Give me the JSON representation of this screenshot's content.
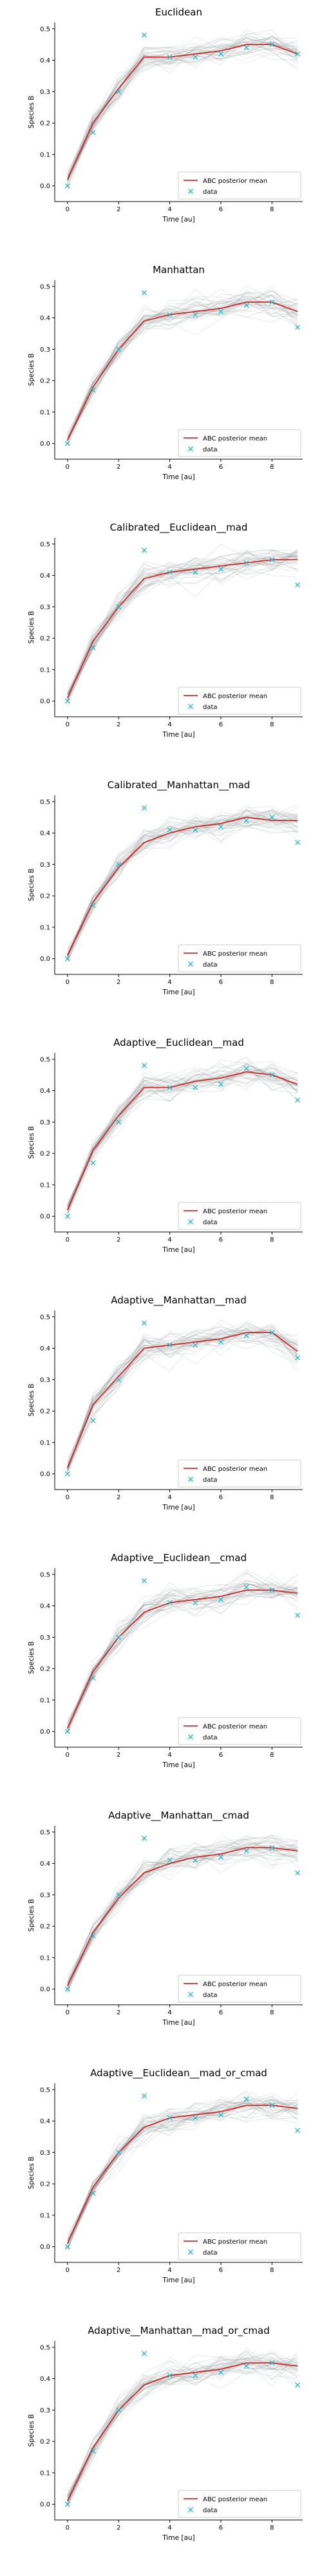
{
  "figure": {
    "x_label": "Time [au]",
    "y_label": "Species B",
    "legend": {
      "mean_label": "ABC posterior mean",
      "data_label": "data",
      "placement": "lower-right"
    },
    "colors": {
      "mean_line": "#d62728",
      "data_marker": "#17becf",
      "posterior_samples": "#7f8c8d"
    }
  },
  "chart_data": [
    {
      "type": "line",
      "title": "Euclidean",
      "xlabel": "Time [au]",
      "ylabel": "Species B",
      "xlim": [
        -0.5,
        9.2
      ],
      "ylim": [
        -0.05,
        0.52
      ],
      "xticks": [
        0,
        2,
        4,
        6,
        8
      ],
      "yticks": [
        0.0,
        0.1,
        0.2,
        0.3,
        0.4,
        0.5
      ],
      "legend_loc": "lower-right",
      "series": [
        {
          "name": "ABC posterior mean",
          "x": [
            0,
            1,
            2,
            3,
            4,
            5,
            6,
            7,
            8,
            9
          ],
          "y": [
            0.02,
            0.2,
            0.31,
            0.41,
            0.41,
            0.42,
            0.43,
            0.45,
            0.45,
            0.42
          ]
        },
        {
          "name": "data",
          "x": [
            0,
            1,
            2,
            3,
            4,
            5,
            6,
            7,
            8,
            9
          ],
          "y": [
            0.0,
            0.17,
            0.3,
            0.48,
            0.41,
            0.41,
            0.42,
            0.44,
            0.45,
            0.42
          ]
        }
      ]
    },
    {
      "type": "line",
      "title": "Manhattan",
      "xlabel": "Time [au]",
      "ylabel": "Species B",
      "xlim": [
        -0.5,
        9.2
      ],
      "ylim": [
        -0.05,
        0.52
      ],
      "xticks": [
        0,
        2,
        4,
        6,
        8
      ],
      "yticks": [
        0.0,
        0.1,
        0.2,
        0.3,
        0.4,
        0.5
      ],
      "legend_loc": "lower-right",
      "series": [
        {
          "name": "ABC posterior mean",
          "x": [
            0,
            1,
            2,
            3,
            4,
            5,
            6,
            7,
            8,
            9
          ],
          "y": [
            0.01,
            0.18,
            0.3,
            0.39,
            0.41,
            0.42,
            0.43,
            0.45,
            0.45,
            0.42
          ]
        },
        {
          "name": "data",
          "x": [
            0,
            1,
            2,
            3,
            4,
            5,
            6,
            7,
            8,
            9
          ],
          "y": [
            0.0,
            0.17,
            0.3,
            0.48,
            0.41,
            0.41,
            0.42,
            0.44,
            0.45,
            0.37
          ]
        }
      ]
    },
    {
      "type": "line",
      "title": "Calibrated__Euclidean__mad",
      "xlabel": "Time [au]",
      "ylabel": "Species B",
      "xlim": [
        -0.5,
        9.2
      ],
      "ylim": [
        -0.05,
        0.52
      ],
      "xticks": [
        0,
        2,
        4,
        6,
        8
      ],
      "yticks": [
        0.0,
        0.1,
        0.2,
        0.3,
        0.4,
        0.5
      ],
      "legend_loc": "lower-right",
      "series": [
        {
          "name": "ABC posterior mean",
          "x": [
            0,
            1,
            2,
            3,
            4,
            5,
            6,
            7,
            8,
            9
          ],
          "y": [
            0.01,
            0.19,
            0.3,
            0.39,
            0.41,
            0.42,
            0.43,
            0.44,
            0.45,
            0.45
          ]
        },
        {
          "name": "data",
          "x": [
            0,
            1,
            2,
            3,
            4,
            5,
            6,
            7,
            8,
            9
          ],
          "y": [
            0.0,
            0.17,
            0.3,
            0.48,
            0.41,
            0.41,
            0.42,
            0.44,
            0.45,
            0.37
          ]
        }
      ]
    },
    {
      "type": "line",
      "title": "Calibrated__Manhattan__mad",
      "xlabel": "Time [au]",
      "ylabel": "Species B",
      "xlim": [
        -0.5,
        9.2
      ],
      "ylim": [
        -0.05,
        0.52
      ],
      "xticks": [
        0,
        2,
        4,
        6,
        8
      ],
      "yticks": [
        0.0,
        0.1,
        0.2,
        0.3,
        0.4,
        0.5
      ],
      "legend_loc": "lower-right",
      "series": [
        {
          "name": "ABC posterior mean",
          "x": [
            0,
            1,
            2,
            3,
            4,
            5,
            6,
            7,
            8,
            9
          ],
          "y": [
            0.01,
            0.18,
            0.29,
            0.37,
            0.4,
            0.42,
            0.43,
            0.45,
            0.44,
            0.44
          ]
        },
        {
          "name": "data",
          "x": [
            0,
            1,
            2,
            3,
            4,
            5,
            6,
            7,
            8,
            9
          ],
          "y": [
            0.0,
            0.17,
            0.3,
            0.48,
            0.41,
            0.41,
            0.42,
            0.44,
            0.45,
            0.37
          ]
        }
      ]
    },
    {
      "type": "line",
      "title": "Adaptive__Euclidean__mad",
      "xlabel": "Time [au]",
      "ylabel": "Species B",
      "xlim": [
        -0.5,
        9.2
      ],
      "ylim": [
        -0.05,
        0.52
      ],
      "xticks": [
        0,
        2,
        4,
        6,
        8
      ],
      "yticks": [
        0.0,
        0.1,
        0.2,
        0.3,
        0.4,
        0.5
      ],
      "legend_loc": "lower-right",
      "series": [
        {
          "name": "ABC posterior mean",
          "x": [
            0,
            1,
            2,
            3,
            4,
            5,
            6,
            7,
            8,
            9
          ],
          "y": [
            0.02,
            0.21,
            0.32,
            0.41,
            0.41,
            0.43,
            0.44,
            0.46,
            0.45,
            0.42
          ]
        },
        {
          "name": "data",
          "x": [
            0,
            1,
            2,
            3,
            4,
            5,
            6,
            7,
            8,
            9
          ],
          "y": [
            0.0,
            0.17,
            0.3,
            0.48,
            0.41,
            0.41,
            0.42,
            0.47,
            0.45,
            0.37
          ]
        }
      ]
    },
    {
      "type": "line",
      "title": "Adaptive__Manhattan__mad",
      "xlabel": "Time [au]",
      "ylabel": "Species B",
      "xlim": [
        -0.5,
        9.2
      ],
      "ylim": [
        -0.05,
        0.52
      ],
      "xticks": [
        0,
        2,
        4,
        6,
        8
      ],
      "yticks": [
        0.0,
        0.1,
        0.2,
        0.3,
        0.4,
        0.5
      ],
      "legend_loc": "lower-right",
      "series": [
        {
          "name": "ABC posterior mean",
          "x": [
            0,
            1,
            2,
            3,
            4,
            5,
            6,
            7,
            8,
            9
          ],
          "y": [
            0.02,
            0.22,
            0.31,
            0.4,
            0.41,
            0.42,
            0.43,
            0.45,
            0.45,
            0.39
          ]
        },
        {
          "name": "data",
          "x": [
            0,
            1,
            2,
            3,
            4,
            5,
            6,
            7,
            8,
            9
          ],
          "y": [
            0.0,
            0.17,
            0.3,
            0.48,
            0.41,
            0.41,
            0.42,
            0.44,
            0.45,
            0.37
          ]
        }
      ]
    },
    {
      "type": "line",
      "title": "Adaptive__Euclidean__cmad",
      "xlabel": "Time [au]",
      "ylabel": "Species B",
      "xlim": [
        -0.5,
        9.2
      ],
      "ylim": [
        -0.05,
        0.52
      ],
      "xticks": [
        0,
        2,
        4,
        6,
        8
      ],
      "yticks": [
        0.0,
        0.1,
        0.2,
        0.3,
        0.4,
        0.5
      ],
      "legend_loc": "lower-right",
      "series": [
        {
          "name": "ABC posterior mean",
          "x": [
            0,
            1,
            2,
            3,
            4,
            5,
            6,
            7,
            8,
            9
          ],
          "y": [
            0.01,
            0.19,
            0.3,
            0.38,
            0.41,
            0.42,
            0.43,
            0.45,
            0.45,
            0.44
          ]
        },
        {
          "name": "data",
          "x": [
            0,
            1,
            2,
            3,
            4,
            5,
            6,
            7,
            8,
            9
          ],
          "y": [
            0.0,
            0.17,
            0.3,
            0.48,
            0.41,
            0.41,
            0.42,
            0.46,
            0.45,
            0.37
          ]
        }
      ]
    },
    {
      "type": "line",
      "title": "Adaptive__Manhattan__cmad",
      "xlabel": "Time [au]",
      "ylabel": "Species B",
      "xlim": [
        -0.5,
        9.2
      ],
      "ylim": [
        -0.05,
        0.52
      ],
      "xticks": [
        0,
        2,
        4,
        6,
        8
      ],
      "yticks": [
        0.0,
        0.1,
        0.2,
        0.3,
        0.4,
        0.5
      ],
      "legend_loc": "lower-right",
      "series": [
        {
          "name": "ABC posterior mean",
          "x": [
            0,
            1,
            2,
            3,
            4,
            5,
            6,
            7,
            8,
            9
          ],
          "y": [
            0.01,
            0.18,
            0.29,
            0.37,
            0.4,
            0.42,
            0.43,
            0.45,
            0.45,
            0.44
          ]
        },
        {
          "name": "data",
          "x": [
            0,
            1,
            2,
            3,
            4,
            5,
            6,
            7,
            8,
            9
          ],
          "y": [
            0.0,
            0.17,
            0.3,
            0.48,
            0.41,
            0.41,
            0.42,
            0.44,
            0.45,
            0.37
          ]
        }
      ]
    },
    {
      "type": "line",
      "title": "Adaptive__Euclidean__mad_or_cmad",
      "xlabel": "Time [au]",
      "ylabel": "Species B",
      "xlim": [
        -0.5,
        9.2
      ],
      "ylim": [
        -0.05,
        0.52
      ],
      "xticks": [
        0,
        2,
        4,
        6,
        8
      ],
      "yticks": [
        0.0,
        0.1,
        0.2,
        0.3,
        0.4,
        0.5
      ],
      "legend_loc": "lower-right",
      "series": [
        {
          "name": "ABC posterior mean",
          "x": [
            0,
            1,
            2,
            3,
            4,
            5,
            6,
            7,
            8,
            9
          ],
          "y": [
            0.01,
            0.19,
            0.3,
            0.38,
            0.41,
            0.42,
            0.43,
            0.45,
            0.45,
            0.44
          ]
        },
        {
          "name": "data",
          "x": [
            0,
            1,
            2,
            3,
            4,
            5,
            6,
            7,
            8,
            9
          ],
          "y": [
            0.0,
            0.17,
            0.3,
            0.48,
            0.41,
            0.41,
            0.42,
            0.47,
            0.45,
            0.37
          ]
        }
      ]
    },
    {
      "type": "line",
      "title": "Adaptive__Manhattan__mad_or_cmad",
      "xlabel": "Time [au]",
      "ylabel": "Species B",
      "xlim": [
        -0.5,
        9.2
      ],
      "ylim": [
        -0.05,
        0.52
      ],
      "xticks": [
        0,
        2,
        4,
        6,
        8
      ],
      "yticks": [
        0.0,
        0.1,
        0.2,
        0.3,
        0.4,
        0.5
      ],
      "legend_loc": "lower-right",
      "series": [
        {
          "name": "ABC posterior mean",
          "x": [
            0,
            1,
            2,
            3,
            4,
            5,
            6,
            7,
            8,
            9
          ],
          "y": [
            0.01,
            0.18,
            0.3,
            0.38,
            0.41,
            0.42,
            0.43,
            0.45,
            0.45,
            0.44
          ]
        },
        {
          "name": "data",
          "x": [
            0,
            1,
            2,
            3,
            4,
            5,
            6,
            7,
            8,
            9
          ],
          "y": [
            0.0,
            0.17,
            0.3,
            0.48,
            0.41,
            0.41,
            0.42,
            0.44,
            0.45,
            0.38
          ]
        }
      ]
    }
  ]
}
